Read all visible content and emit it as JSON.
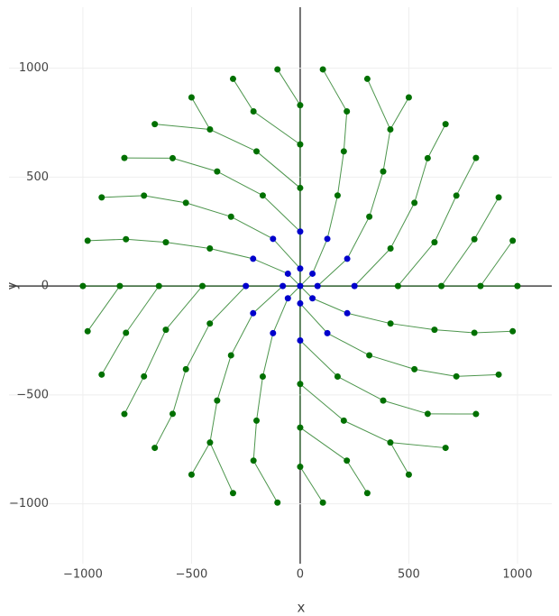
{
  "chart_data": {
    "type": "network",
    "x_label": "x",
    "y_label": "y",
    "xlim": [
      -1340,
      1158
    ],
    "ylim": [
      -1275,
      1280
    ],
    "xticks": [
      {
        "value": -1000,
        "label": "−1000"
      },
      {
        "value": -500,
        "label": "−500"
      },
      0,
      500,
      1000
    ],
    "yticks": [
      {
        "value": -1000,
        "label": "−1000"
      },
      {
        "value": -500,
        "label": "−500"
      },
      0,
      500,
      1000
    ],
    "grid": true,
    "edge_color": "#1f7a1f",
    "rings": [
      {
        "r": 0,
        "color": "#0000cc",
        "theta": [
          0
        ],
        "parent": [
          0
        ]
      },
      {
        "r": 80,
        "color": "#0000cc",
        "theta": [
          0,
          45,
          90,
          135,
          180,
          225,
          270,
          315
        ],
        "parent": [
          0,
          0,
          0,
          0,
          0,
          0,
          0,
          0
        ]
      },
      {
        "r": 250,
        "color": "#0000cc",
        "theta": [
          0,
          30,
          60,
          90,
          120,
          150,
          180,
          210,
          240,
          270,
          300,
          330
        ],
        "parent": [
          0,
          0,
          1,
          2,
          2,
          3,
          4,
          4,
          5,
          6,
          6,
          7
        ]
      },
      {
        "r": 450,
        "color": "#007000",
        "theta": [
          0,
          22.5,
          45,
          67.5,
          90,
          112.5,
          135,
          157.5,
          180,
          202.5,
          225,
          247.5,
          270,
          292.5,
          315,
          337.5
        ],
        "parent": [
          0,
          0,
          1,
          2,
          3,
          3,
          4,
          5,
          6,
          6,
          7,
          8,
          9,
          9,
          10,
          11
        ]
      },
      {
        "r": 650,
        "color": "#007000",
        "theta": [
          0,
          18,
          36,
          54,
          72,
          90,
          108,
          126,
          144,
          162,
          180,
          198,
          216,
          234,
          252,
          270,
          288,
          306,
          324,
          342
        ],
        "parent": [
          0,
          0,
          1,
          2,
          3,
          4,
          4,
          5,
          6,
          7,
          8,
          8,
          9,
          10,
          11,
          12,
          12,
          13,
          14,
          15
        ]
      },
      {
        "r": 830,
        "color": "#007000",
        "theta": [
          0,
          15,
          30,
          45,
          60,
          75,
          90,
          105,
          120,
          135,
          150,
          165,
          180,
          195,
          210,
          225,
          240,
          255,
          270,
          285,
          300,
          315,
          330,
          345
        ],
        "parent": [
          0,
          0,
          1,
          2,
          3,
          4,
          5,
          5,
          6,
          7,
          8,
          9,
          10,
          10,
          11,
          12,
          13,
          14,
          15,
          15,
          16,
          17,
          18,
          19
        ]
      },
      {
        "r": 1000,
        "color": "#007000",
        "theta": [
          0,
          12,
          24,
          36,
          48,
          60,
          72,
          84,
          96,
          108,
          120,
          132,
          144,
          156,
          168,
          180,
          192,
          204,
          216,
          228,
          240,
          252,
          264,
          276,
          288,
          300,
          312,
          324,
          336,
          348
        ],
        "parent": [
          0,
          0,
          1,
          2,
          3,
          4,
          4,
          5,
          6,
          7,
          8,
          8,
          9,
          10,
          11,
          12,
          12,
          13,
          14,
          15,
          16,
          16,
          17,
          18,
          19,
          20,
          20,
          21,
          22,
          23
        ]
      }
    ]
  }
}
